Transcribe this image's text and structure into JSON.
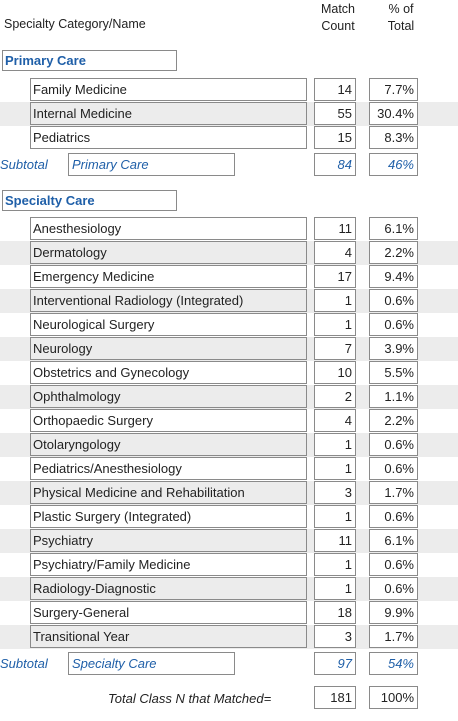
{
  "header": {
    "category_label": "Specialty Category/Name",
    "match_label_1": "Match",
    "match_label_2": "Count",
    "pct_label_1": "% of",
    "pct_label_2": "Total"
  },
  "primary": {
    "title": "Primary Care",
    "rows": [
      {
        "name": "Family Medicine",
        "count": "14",
        "pct": "7.7%"
      },
      {
        "name": "Internal Medicine",
        "count": "55",
        "pct": "30.4%"
      },
      {
        "name": "Pediatrics",
        "count": "15",
        "pct": "8.3%"
      }
    ],
    "subtotal_label": "Subtotal",
    "subtotal_name": "Primary Care",
    "subtotal_count": "84",
    "subtotal_pct": "46%"
  },
  "specialty": {
    "title": "Specialty Care",
    "rows": [
      {
        "name": "Anesthesiology",
        "count": "11",
        "pct": "6.1%"
      },
      {
        "name": "Dermatology",
        "count": "4",
        "pct": "2.2%"
      },
      {
        "name": "Emergency Medicine",
        "count": "17",
        "pct": "9.4%"
      },
      {
        "name": "Interventional Radiology (Integrated)",
        "count": "1",
        "pct": "0.6%"
      },
      {
        "name": "Neurological Surgery",
        "count": "1",
        "pct": "0.6%"
      },
      {
        "name": "Neurology",
        "count": "7",
        "pct": "3.9%"
      },
      {
        "name": "Obstetrics and Gynecology",
        "count": "10",
        "pct": "5.5%"
      },
      {
        "name": "Ophthalmology",
        "count": "2",
        "pct": "1.1%"
      },
      {
        "name": "Orthopaedic Surgery",
        "count": "4",
        "pct": "2.2%"
      },
      {
        "name": "Otolaryngology",
        "count": "1",
        "pct": "0.6%"
      },
      {
        "name": "Pediatrics/Anesthesiology",
        "count": "1",
        "pct": "0.6%"
      },
      {
        "name": "Physical Medicine and Rehabilitation",
        "count": "3",
        "pct": "1.7%"
      },
      {
        "name": "Plastic Surgery (Integrated)",
        "count": "1",
        "pct": "0.6%"
      },
      {
        "name": "Psychiatry",
        "count": "11",
        "pct": "6.1%"
      },
      {
        "name": "Psychiatry/Family Medicine",
        "count": "1",
        "pct": "0.6%"
      },
      {
        "name": "Radiology-Diagnostic",
        "count": "1",
        "pct": "0.6%"
      },
      {
        "name": "Surgery-General",
        "count": "18",
        "pct": "9.9%"
      },
      {
        "name": "Transitional Year",
        "count": "3",
        "pct": "1.7%"
      }
    ],
    "subtotal_label": "Subtotal",
    "subtotal_name": "Specialty Care",
    "subtotal_count": "97",
    "subtotal_pct": "54%"
  },
  "total": {
    "label": "Total  Class N that Matched=",
    "count": "181",
    "pct": "100%"
  }
}
